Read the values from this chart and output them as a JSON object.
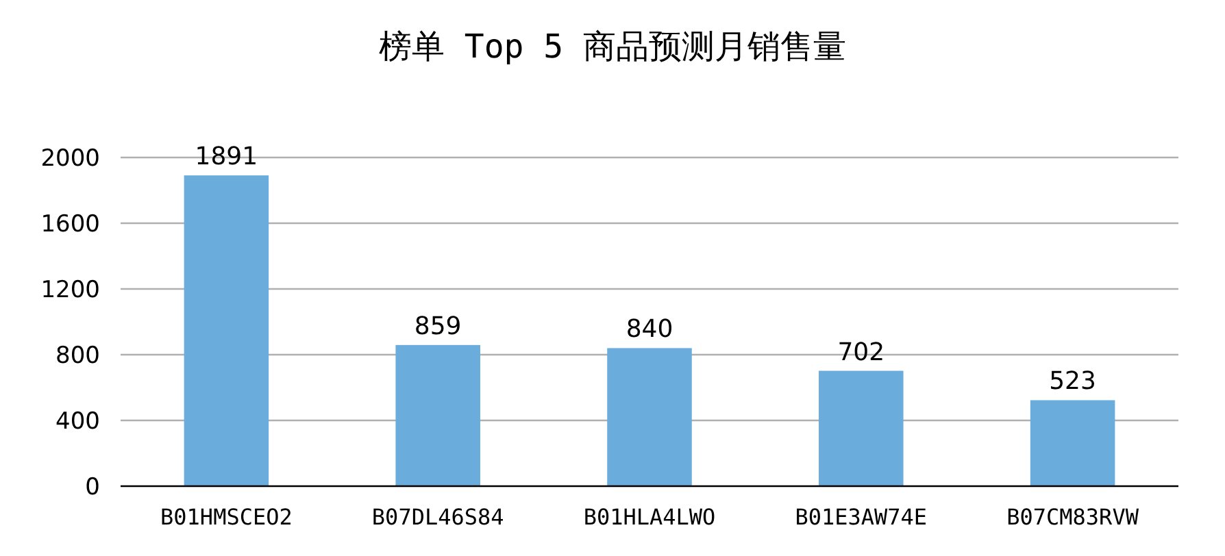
{
  "chart_data": {
    "type": "bar",
    "title": "榜单 Top 5 商品预测月销售量",
    "categories": [
      "B01HMSCEO2",
      "B07DL46S84",
      "B01HLA4LWO",
      "B01E3AW74E",
      "B07CM83RVW"
    ],
    "values": [
      1891,
      859,
      840,
      702,
      523
    ],
    "color": "#6aaddc",
    "ylim": [
      0,
      2000
    ],
    "yticks": [
      0,
      400,
      800,
      1200,
      1600,
      2000
    ],
    "grid": "y",
    "data_labels": true
  }
}
